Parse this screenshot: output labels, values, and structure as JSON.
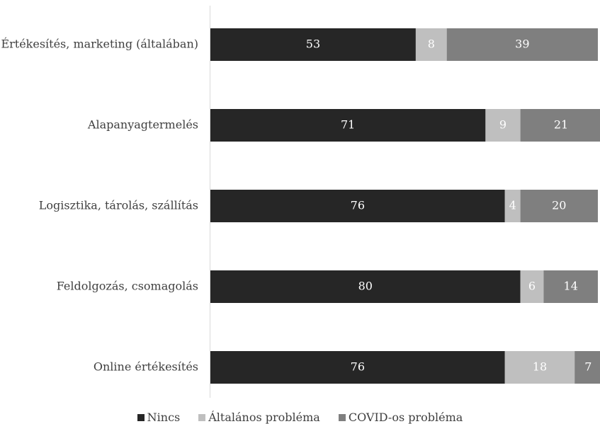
{
  "chart_data": {
    "type": "bar",
    "orientation": "horizontal",
    "stacked": true,
    "categories": [
      "Értékesítés, marketing (általában)",
      "Alapanyagtermelés",
      "Logisztika, tárolás, szállítás",
      "Feldolgozás, csomagolás",
      "Online értékesítés"
    ],
    "series": [
      {
        "name": "Nincs",
        "color": "#262626",
        "values": [
          53,
          71,
          76,
          80,
          76
        ]
      },
      {
        "name": "Általános probléma",
        "color": "#bfbfbf",
        "values": [
          8,
          9,
          4,
          6,
          18
        ]
      },
      {
        "name": "COVID-os probléma",
        "color": "#7f7f7f",
        "values": [
          39,
          21,
          20,
          14,
          7
        ]
      }
    ],
    "xlim": [
      0,
      100
    ],
    "grid": false,
    "legend_position": "bottom",
    "data_labels": true
  }
}
